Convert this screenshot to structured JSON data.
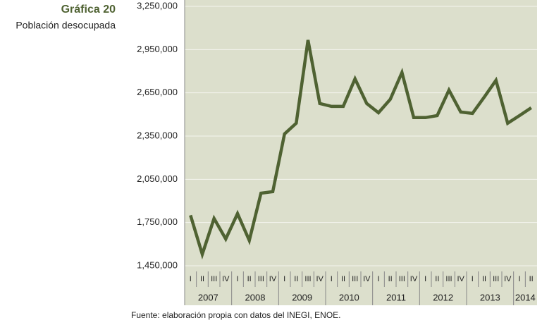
{
  "chart_data": {
    "type": "line",
    "title": "Gráfica 20",
    "subtitle": "Población desocupada",
    "source": "Fuente: elaboración propia con datos del INEGI, ENOE.",
    "groups": [
      {
        "label": "2007",
        "quarters": [
          "I",
          "II",
          "III",
          "IV"
        ]
      },
      {
        "label": "2008",
        "quarters": [
          "I",
          "II",
          "III",
          "IV"
        ]
      },
      {
        "label": "2009",
        "quarters": [
          "I",
          "II",
          "III",
          "IV"
        ]
      },
      {
        "label": "2010",
        "quarters": [
          "I",
          "II",
          "III",
          "IV"
        ]
      },
      {
        "label": "2011",
        "quarters": [
          "I",
          "II",
          "III",
          "IV"
        ]
      },
      {
        "label": "2012",
        "quarters": [
          "I",
          "II",
          "III",
          "IV"
        ]
      },
      {
        "label": "2013",
        "quarters": [
          "I",
          "II",
          "III",
          "IV"
        ]
      },
      {
        "label": "2014",
        "quarters": [
          "I",
          "II"
        ]
      }
    ],
    "values": [
      1800000,
      1530000,
      1778000,
      1636000,
      1812000,
      1626000,
      1954000,
      1964000,
      2365000,
      2439000,
      3016000,
      2576000,
      2556000,
      2556000,
      2747000,
      2576000,
      2512000,
      2605000,
      2791000,
      2478000,
      2478000,
      2492000,
      2669000,
      2517000,
      2507000,
      2620000,
      2737000,
      2439000,
      2492000,
      2546000
    ],
    "color": "#4f6232",
    "ylim": [
      1450000,
      3250000
    ],
    "yticks": [
      {
        "value": 1450000,
        "label": "1,450,000"
      },
      {
        "value": 1750000,
        "label": "1,750,000"
      },
      {
        "value": 2050000,
        "label": "2,050,000"
      },
      {
        "value": 2350000,
        "label": "2,350,000"
      },
      {
        "value": 2650000,
        "label": "2,650,000"
      },
      {
        "value": 2950000,
        "label": "2,950,000"
      },
      {
        "value": 3250000,
        "label": "3,250,000"
      }
    ],
    "grid": true
  }
}
